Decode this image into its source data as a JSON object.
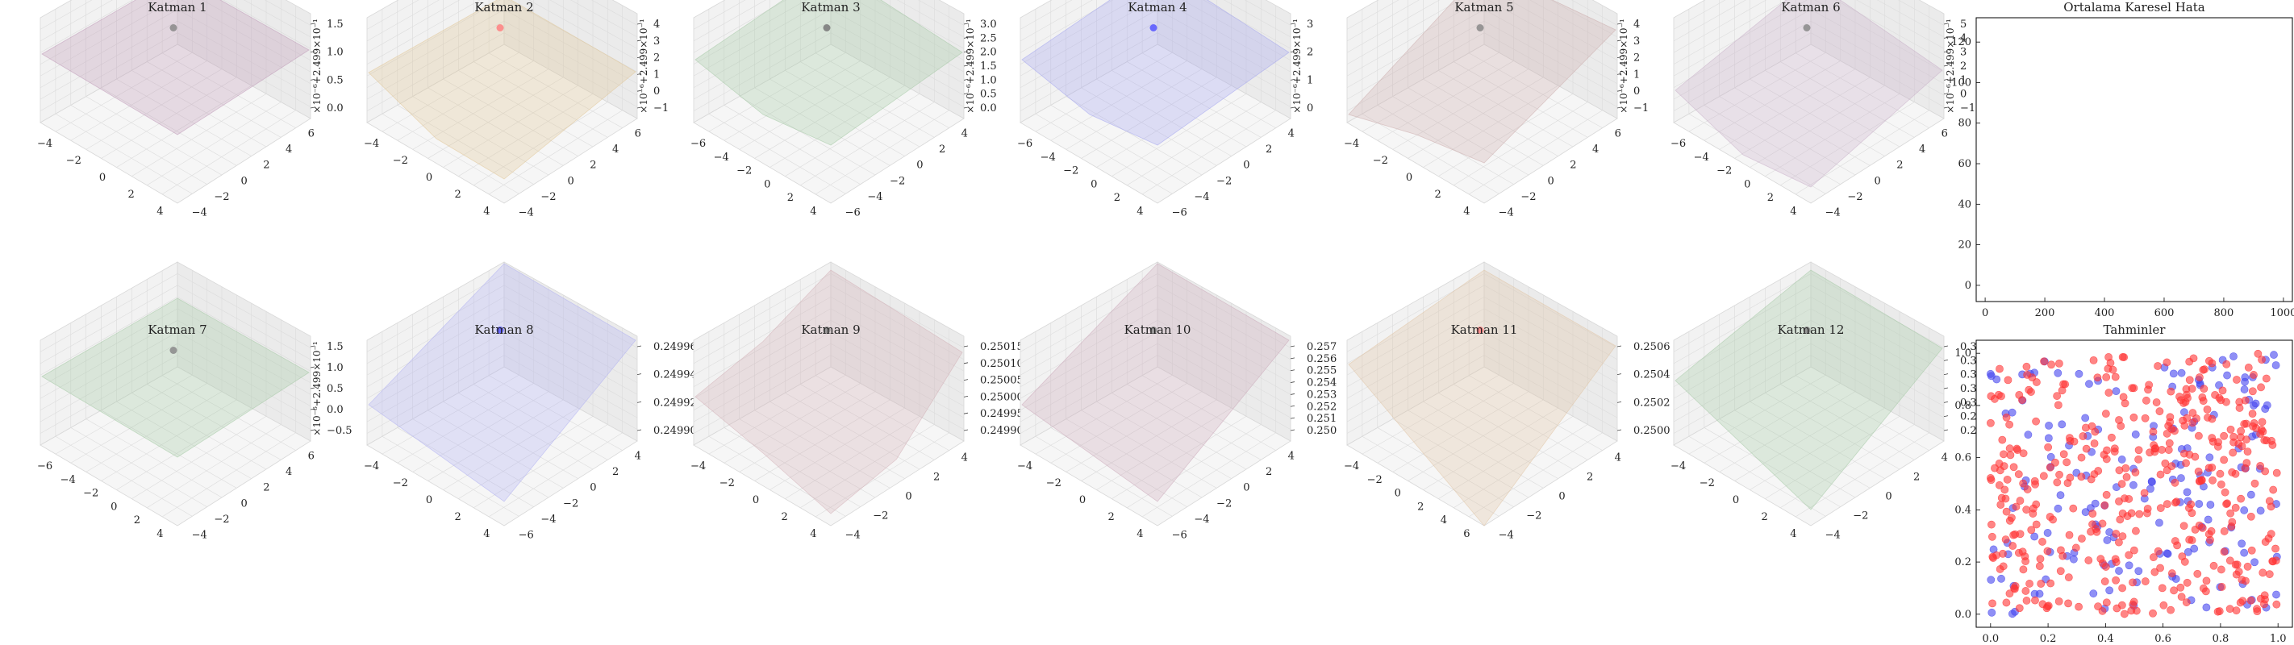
{
  "chart_data": [
    {
      "type": "surface3d",
      "title": "Katman 1",
      "zlabel": "×10⁻⁶+2.499×10⁻¹",
      "zticks": [
        "0.0",
        "0.5",
        "1.0",
        "1.5"
      ],
      "xticks": [
        "−4",
        "−2",
        "0",
        "2",
        "4"
      ],
      "yticks": [
        "−4",
        "−2",
        "0",
        "2",
        "4",
        "6"
      ],
      "color": "#b98fb1",
      "marker_color": "#888888",
      "surface": "flat"
    },
    {
      "type": "surface3d",
      "title": "Katman 2",
      "zlabel": "×10⁻⁶+2.499×10⁻¹",
      "zticks": [
        "−1",
        "0",
        "1",
        "2",
        "3",
        "4"
      ],
      "xticks": [
        "−4",
        "−2",
        "0",
        "2",
        "4"
      ],
      "yticks": [
        "−4",
        "−2",
        "0",
        "2",
        "4",
        "6"
      ],
      "color": "#e0c28c",
      "marker_color": "#ff8080",
      "surface": "sag"
    },
    {
      "type": "surface3d",
      "title": "Katman 3",
      "zlabel": "×10⁻⁶+2.499×10⁻¹",
      "zticks": [
        "0.0",
        "0.5",
        "1.0",
        "1.5",
        "2.0",
        "2.5",
        "3.0"
      ],
      "xticks": [
        "−6",
        "−4",
        "−2",
        "0",
        "2",
        "4"
      ],
      "yticks": [
        "−6",
        "−4",
        "−2",
        "0",
        "2",
        "4"
      ],
      "color": "#9cc49c",
      "marker_color": "#777777",
      "surface": "wave"
    },
    {
      "type": "surface3d",
      "title": "Katman 4",
      "zlabel": "×10⁻⁶+2.499×10⁻¹",
      "zticks": [
        "0",
        "1",
        "2",
        "3"
      ],
      "xticks": [
        "−6",
        "−4",
        "−2",
        "0",
        "2",
        "4"
      ],
      "yticks": [
        "−6",
        "−4",
        "−2",
        "0",
        "2",
        "4"
      ],
      "color": "#9a9cf0",
      "marker_color": "#5555ff",
      "surface": "wave"
    },
    {
      "type": "surface3d",
      "title": "Katman 5",
      "zlabel": "×10⁻⁶+2.499×10⁻¹",
      "zticks": [
        "−1",
        "0",
        "1",
        "2",
        "3",
        "4"
      ],
      "xticks": [
        "−4",
        "−2",
        "0",
        "2",
        "4"
      ],
      "yticks": [
        "−4",
        "−2",
        "0",
        "2",
        "4",
        "6"
      ],
      "color": "#c8a4a4",
      "marker_color": "#888888",
      "surface": "fold"
    },
    {
      "type": "surface3d",
      "title": "Katman 6",
      "zlabel": "×10⁻⁶+2.499×10⁻¹",
      "zticks": [
        "−1",
        "0",
        "1",
        "2",
        "3",
        "4",
        "5"
      ],
      "xticks": [
        "−6",
        "−4",
        "−2",
        "0",
        "2",
        "4"
      ],
      "yticks": [
        "−4",
        "−2",
        "0",
        "2",
        "4",
        "6"
      ],
      "color": "#c4a8c4",
      "marker_color": "#888888",
      "surface": "bowl"
    },
    {
      "type": "surface3d",
      "title": "Katman 7",
      "zlabel": "×10⁻⁶+2.499×10⁻¹",
      "zticks": [
        "−0.5",
        "0.0",
        "0.5",
        "1.0",
        "1.5"
      ],
      "xticks": [
        "−6",
        "−4",
        "−2",
        "0",
        "2",
        "4"
      ],
      "yticks": [
        "−4",
        "−2",
        "0",
        "2",
        "4",
        "6"
      ],
      "color": "#9cc49c",
      "marker_color": "#888888",
      "surface": "flat"
    },
    {
      "type": "surface3d",
      "title": "Katman 8",
      "zlabel": "",
      "zticks": [
        "0.24990",
        "0.24992",
        "0.24994",
        "0.24996"
      ],
      "xticks": [
        "−4",
        "−2",
        "0",
        "2",
        "4"
      ],
      "yticks": [
        "−6",
        "−4",
        "−2",
        "0",
        "2",
        "4"
      ],
      "color": "#a8a8f4",
      "marker_color": "#5555ff",
      "surface": "ramp"
    },
    {
      "type": "surface3d",
      "title": "Katman 9",
      "zlabel": "",
      "zticks": [
        "0.24990",
        "0.24995",
        "0.25000",
        "0.25005",
        "0.25010",
        "0.25015"
      ],
      "xticks": [
        "−4",
        "−2",
        "0",
        "2",
        "4"
      ],
      "yticks": [
        "−4",
        "−2",
        "0",
        "2",
        "4"
      ],
      "color": "#d0a8b0",
      "marker_color": "#888888",
      "surface": "valley"
    },
    {
      "type": "surface3d",
      "title": "Katman 10",
      "zlabel": "",
      "zticks": [
        "0.250",
        "0.251",
        "0.252",
        "0.253",
        "0.254",
        "0.255",
        "0.256",
        "0.257"
      ],
      "xticks": [
        "−4",
        "−2",
        "0",
        "2",
        "4"
      ],
      "yticks": [
        "−6",
        "−4",
        "−2",
        "0",
        "2",
        "4"
      ],
      "color": "#c8a0b4",
      "marker_color": "#888888",
      "surface": "ramp"
    },
    {
      "type": "surface3d",
      "title": "Katman 11",
      "zlabel": "",
      "zticks": [
        "0.2500",
        "0.2502",
        "0.2504",
        "0.2506"
      ],
      "xticks": [
        "−4",
        "−2",
        "0",
        "2",
        "4",
        "6"
      ],
      "yticks": [
        "−4",
        "−2",
        "0",
        "2",
        "4"
      ],
      "color": "#e0c09c",
      "marker_color": "#ff8080",
      "surface": "vee"
    },
    {
      "type": "surface3d",
      "title": "Katman 12",
      "zlabel": "",
      "zticks": [
        "0.26",
        "0.28",
        "0.30",
        "0.32",
        "0.34",
        "0.36",
        "0.38"
      ],
      "xticks": [
        "−4",
        "−2",
        "0",
        "2",
        "4"
      ],
      "yticks": [
        "−4",
        "−2",
        "0",
        "2",
        "4"
      ],
      "color": "#9cc49c",
      "marker_color": "#888888",
      "surface": "tilt"
    },
    {
      "type": "line",
      "title": "Ortalama Karesel Hata",
      "xlim": [
        -30,
        1030
      ],
      "ylim": [
        -8,
        132
      ],
      "xticks": [
        0,
        200,
        400,
        600,
        800,
        1000
      ],
      "yticks": [
        0,
        20,
        40,
        60,
        80,
        100,
        120
      ],
      "series": []
    },
    {
      "type": "scatter",
      "title": "Tahminler",
      "xlim": [
        -0.05,
        1.05
      ],
      "ylim": [
        -0.05,
        1.05
      ],
      "xticks": [
        0.0,
        0.2,
        0.4,
        0.6,
        0.8,
        1.0
      ],
      "yticks": [
        0.0,
        0.2,
        0.4,
        0.6,
        0.8,
        1.0
      ],
      "colors": {
        "class_a": "#ff3333",
        "class_b": "#4444ee"
      },
      "counts": {
        "class_a": 430,
        "class_b": 160
      },
      "seed": 7
    }
  ]
}
